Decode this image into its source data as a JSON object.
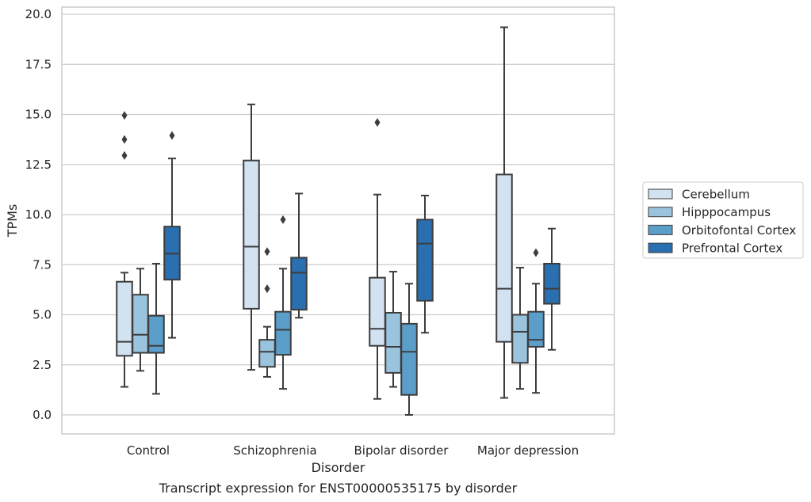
{
  "chart_data": {
    "type": "boxplot",
    "title": "",
    "caption": "Transcript expression for ENST00000535175 by disorder",
    "xlabel": "Disorder",
    "ylabel": "TPMs",
    "ylim": [
      -0.9,
      20.3
    ],
    "yticks": [
      "0.0",
      "2.5",
      "5.0",
      "7.5",
      "10.0",
      "12.5",
      "15.0",
      "17.5",
      "20.0"
    ],
    "ytick_values": [
      0,
      2.5,
      5,
      7.5,
      10,
      12.5,
      15,
      17.5,
      20
    ],
    "grid": "horizontal",
    "legend_position": "right",
    "categories": [
      "Control",
      "Schizophrenia",
      "Bipolar disorder",
      "Major depression"
    ],
    "series": [
      {
        "name": "Cerebellum",
        "color": "#d3e2f0",
        "boxes": [
          {
            "whisker_low": 1.4,
            "q1": 2.95,
            "median": 3.65,
            "q3": 6.65,
            "whisker_high": 7.1,
            "outliers": [
              12.95,
              13.75,
              14.95
            ]
          },
          {
            "whisker_low": 2.25,
            "q1": 5.3,
            "median": 8.4,
            "q3": 12.7,
            "whisker_high": 15.5,
            "outliers": []
          },
          {
            "whisker_low": 0.8,
            "q1": 3.45,
            "median": 4.3,
            "q3": 6.85,
            "whisker_high": 11.0,
            "outliers": [
              14.6
            ]
          },
          {
            "whisker_low": 0.85,
            "q1": 3.65,
            "median": 6.3,
            "q3": 12.0,
            "whisker_high": 19.35,
            "outliers": []
          }
        ]
      },
      {
        "name": "Hipppocampus",
        "color": "#9ac3de",
        "boxes": [
          {
            "whisker_low": 2.2,
            "q1": 3.1,
            "median": 4.0,
            "q3": 6.0,
            "whisker_high": 7.3,
            "outliers": []
          },
          {
            "whisker_low": 1.9,
            "q1": 2.4,
            "median": 3.15,
            "q3": 3.75,
            "whisker_high": 4.4,
            "outliers": [
              6.3,
              8.15
            ]
          },
          {
            "whisker_low": 1.4,
            "q1": 2.1,
            "median": 3.4,
            "q3": 5.1,
            "whisker_high": 7.15,
            "outliers": []
          },
          {
            "whisker_low": 1.3,
            "q1": 2.6,
            "median": 4.15,
            "q3": 5.0,
            "whisker_high": 7.35,
            "outliers": []
          }
        ]
      },
      {
        "name": "Orbitofontal Cortex",
        "color": "#5b9ec9",
        "boxes": [
          {
            "whisker_low": 1.05,
            "q1": 3.1,
            "median": 3.45,
            "q3": 4.95,
            "whisker_high": 7.55,
            "outliers": []
          },
          {
            "whisker_low": 1.3,
            "q1": 3.0,
            "median": 4.25,
            "q3": 5.15,
            "whisker_high": 7.3,
            "outliers": [
              9.75
            ]
          },
          {
            "whisker_low": 0.0,
            "q1": 1.0,
            "median": 3.15,
            "q3": 4.55,
            "whisker_high": 6.55,
            "outliers": []
          },
          {
            "whisker_low": 1.1,
            "q1": 3.4,
            "median": 3.75,
            "q3": 5.15,
            "whisker_high": 6.55,
            "outliers": [
              8.1
            ]
          }
        ]
      },
      {
        "name": "Prefrontal Cortex",
        "color": "#2a6fb0",
        "boxes": [
          {
            "whisker_low": 3.85,
            "q1": 6.75,
            "median": 8.05,
            "q3": 9.4,
            "whisker_high": 12.8,
            "outliers": [
              13.95
            ]
          },
          {
            "whisker_low": 4.85,
            "q1": 5.25,
            "median": 7.1,
            "q3": 7.85,
            "whisker_high": 11.05,
            "outliers": []
          },
          {
            "whisker_low": 4.1,
            "q1": 5.7,
            "median": 8.55,
            "q3": 9.75,
            "whisker_high": 10.95,
            "outliers": []
          },
          {
            "whisker_low": 3.25,
            "q1": 5.55,
            "median": 6.3,
            "q3": 7.55,
            "whisker_high": 9.3,
            "outliers": []
          }
        ]
      }
    ]
  }
}
